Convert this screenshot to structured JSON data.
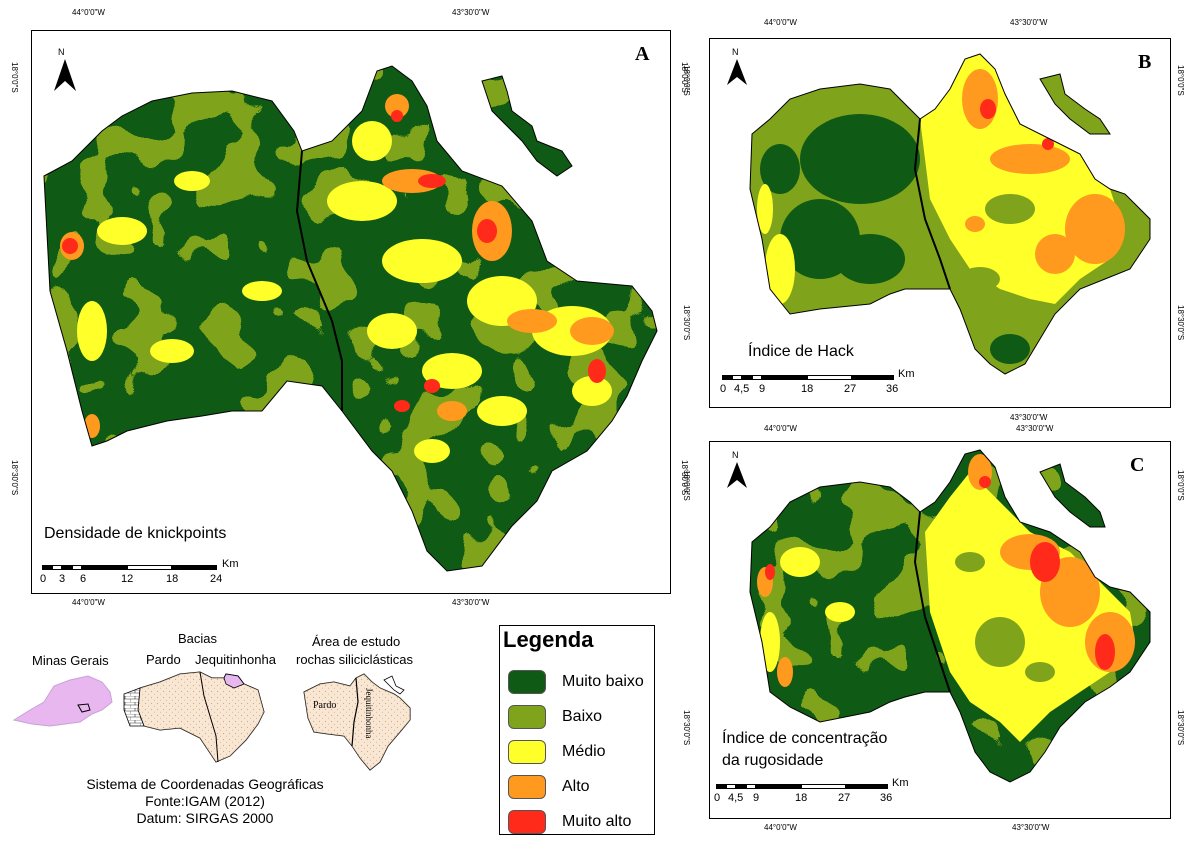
{
  "panels": {
    "a": {
      "letter": "A",
      "title": "Densidade de knickpoints",
      "lon_top_left": "44°0'0\"W",
      "lon_top_right": "43°30'0\"W",
      "lon_bottom_left": "44°0'0\"W",
      "lon_bottom_right": "43°30'0\"W",
      "lat_upper": "18°0'0\"S",
      "lat_lower": "18°30'0\"S",
      "north": "N",
      "scale_labels": [
        "0",
        "3",
        "6",
        "12",
        "18",
        "24"
      ],
      "scale_unit": "Km"
    },
    "b": {
      "letter": "B",
      "title": "Índice de Hack",
      "lon_top_left": "44°0'0\"W",
      "lon_top_right": "43°30'0\"W",
      "lon_bottom_right": "43°30'0\"W",
      "lat_upper": "18°0'0\"S",
      "lat_lower": "18°30'0\"S",
      "north": "N",
      "scale_labels": [
        "0",
        "4,5",
        "9",
        "18",
        "27",
        "36"
      ],
      "scale_unit": "Km"
    },
    "c": {
      "letter": "C",
      "title_line1": "Índice de concentração",
      "title_line2": "da rugosidade",
      "lon_top_left": "44°0'0\"W",
      "lon_top_right": "43°30'0\"W",
      "lon_bottom_left": "44°0'0\"W",
      "lon_bottom_right": "43°30'0\"W",
      "lat_upper": "18°0'0\"S",
      "lat_lower": "18°30'0\"S",
      "north": "N",
      "scale_labels": [
        "0",
        "4,5",
        "9",
        "18",
        "27",
        "36"
      ],
      "scale_unit": "Km"
    }
  },
  "locator": {
    "minas_gerais": "Minas Gerais",
    "bacias": "Bacias",
    "pardo": "Pardo",
    "jequitinhonha": "Jequitinhonha",
    "area_line1": "Área de estudo",
    "area_line2": "rochas siliciclásticas",
    "map_pardo": "Pardo",
    "map_jequitinhonha": "Jequitinhonha"
  },
  "credits": {
    "line1": "Sistema de Coordenadas Geográficas",
    "line2": "Fonte:IGAM (2012)",
    "line3": "Datum: SIRGAS 2000"
  },
  "legend": {
    "title": "Legenda",
    "items": [
      {
        "label": "Muito baixo",
        "color": "#0f5a14"
      },
      {
        "label": "Baixo",
        "color": "#7fa41c"
      },
      {
        "label": "Médio",
        "color": "#ffff2a"
      },
      {
        "label": "Alto",
        "color": "#ff9a1e"
      },
      {
        "label": "Muito alto",
        "color": "#ff2a1a"
      }
    ]
  },
  "colors": {
    "muito_baixo": "#0f5a14",
    "baixo": "#7fa41c",
    "medio": "#ffff2a",
    "alto": "#ff9a1e",
    "muito_alto": "#ff2a1a",
    "minas_fill": "#e8b7f0",
    "basin_fill": "#f5d5b5"
  }
}
